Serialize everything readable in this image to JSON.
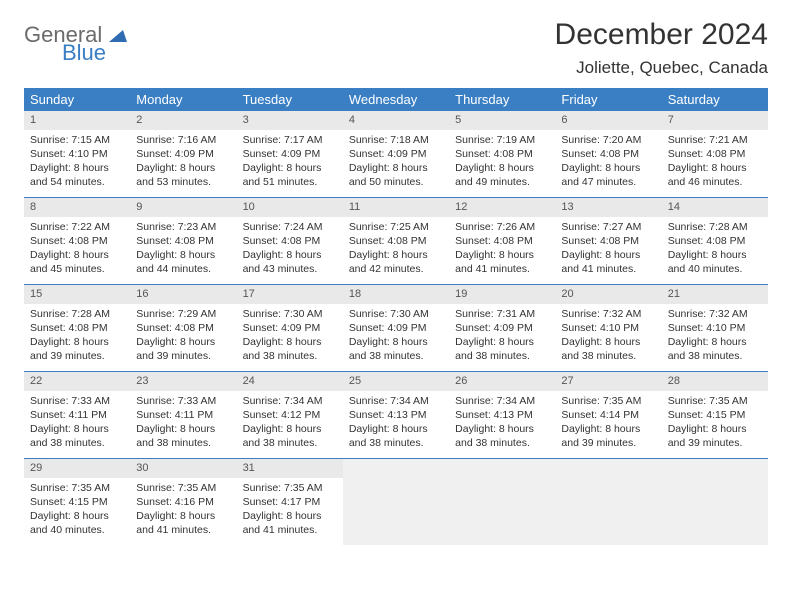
{
  "logo": {
    "word1": "General",
    "word2": "Blue"
  },
  "header": {
    "title": "December 2024",
    "location": "Joliette, Quebec, Canada"
  },
  "colors": {
    "accent": "#3a7fc4",
    "daynum_bg": "#e9e9e9",
    "empty_bg": "#f0f0f0"
  },
  "day_labels": [
    "Sunday",
    "Monday",
    "Tuesday",
    "Wednesday",
    "Thursday",
    "Friday",
    "Saturday"
  ],
  "weeks": [
    [
      {
        "n": "1",
        "sr": "Sunrise: 7:15 AM",
        "ss": "Sunset: 4:10 PM",
        "d1": "Daylight: 8 hours",
        "d2": "and 54 minutes."
      },
      {
        "n": "2",
        "sr": "Sunrise: 7:16 AM",
        "ss": "Sunset: 4:09 PM",
        "d1": "Daylight: 8 hours",
        "d2": "and 53 minutes."
      },
      {
        "n": "3",
        "sr": "Sunrise: 7:17 AM",
        "ss": "Sunset: 4:09 PM",
        "d1": "Daylight: 8 hours",
        "d2": "and 51 minutes."
      },
      {
        "n": "4",
        "sr": "Sunrise: 7:18 AM",
        "ss": "Sunset: 4:09 PM",
        "d1": "Daylight: 8 hours",
        "d2": "and 50 minutes."
      },
      {
        "n": "5",
        "sr": "Sunrise: 7:19 AM",
        "ss": "Sunset: 4:08 PM",
        "d1": "Daylight: 8 hours",
        "d2": "and 49 minutes."
      },
      {
        "n": "6",
        "sr": "Sunrise: 7:20 AM",
        "ss": "Sunset: 4:08 PM",
        "d1": "Daylight: 8 hours",
        "d2": "and 47 minutes."
      },
      {
        "n": "7",
        "sr": "Sunrise: 7:21 AM",
        "ss": "Sunset: 4:08 PM",
        "d1": "Daylight: 8 hours",
        "d2": "and 46 minutes."
      }
    ],
    [
      {
        "n": "8",
        "sr": "Sunrise: 7:22 AM",
        "ss": "Sunset: 4:08 PM",
        "d1": "Daylight: 8 hours",
        "d2": "and 45 minutes."
      },
      {
        "n": "9",
        "sr": "Sunrise: 7:23 AM",
        "ss": "Sunset: 4:08 PM",
        "d1": "Daylight: 8 hours",
        "d2": "and 44 minutes."
      },
      {
        "n": "10",
        "sr": "Sunrise: 7:24 AM",
        "ss": "Sunset: 4:08 PM",
        "d1": "Daylight: 8 hours",
        "d2": "and 43 minutes."
      },
      {
        "n": "11",
        "sr": "Sunrise: 7:25 AM",
        "ss": "Sunset: 4:08 PM",
        "d1": "Daylight: 8 hours",
        "d2": "and 42 minutes."
      },
      {
        "n": "12",
        "sr": "Sunrise: 7:26 AM",
        "ss": "Sunset: 4:08 PM",
        "d1": "Daylight: 8 hours",
        "d2": "and 41 minutes."
      },
      {
        "n": "13",
        "sr": "Sunrise: 7:27 AM",
        "ss": "Sunset: 4:08 PM",
        "d1": "Daylight: 8 hours",
        "d2": "and 41 minutes."
      },
      {
        "n": "14",
        "sr": "Sunrise: 7:28 AM",
        "ss": "Sunset: 4:08 PM",
        "d1": "Daylight: 8 hours",
        "d2": "and 40 minutes."
      }
    ],
    [
      {
        "n": "15",
        "sr": "Sunrise: 7:28 AM",
        "ss": "Sunset: 4:08 PM",
        "d1": "Daylight: 8 hours",
        "d2": "and 39 minutes."
      },
      {
        "n": "16",
        "sr": "Sunrise: 7:29 AM",
        "ss": "Sunset: 4:08 PM",
        "d1": "Daylight: 8 hours",
        "d2": "and 39 minutes."
      },
      {
        "n": "17",
        "sr": "Sunrise: 7:30 AM",
        "ss": "Sunset: 4:09 PM",
        "d1": "Daylight: 8 hours",
        "d2": "and 38 minutes."
      },
      {
        "n": "18",
        "sr": "Sunrise: 7:30 AM",
        "ss": "Sunset: 4:09 PM",
        "d1": "Daylight: 8 hours",
        "d2": "and 38 minutes."
      },
      {
        "n": "19",
        "sr": "Sunrise: 7:31 AM",
        "ss": "Sunset: 4:09 PM",
        "d1": "Daylight: 8 hours",
        "d2": "and 38 minutes."
      },
      {
        "n": "20",
        "sr": "Sunrise: 7:32 AM",
        "ss": "Sunset: 4:10 PM",
        "d1": "Daylight: 8 hours",
        "d2": "and 38 minutes."
      },
      {
        "n": "21",
        "sr": "Sunrise: 7:32 AM",
        "ss": "Sunset: 4:10 PM",
        "d1": "Daylight: 8 hours",
        "d2": "and 38 minutes."
      }
    ],
    [
      {
        "n": "22",
        "sr": "Sunrise: 7:33 AM",
        "ss": "Sunset: 4:11 PM",
        "d1": "Daylight: 8 hours",
        "d2": "and 38 minutes."
      },
      {
        "n": "23",
        "sr": "Sunrise: 7:33 AM",
        "ss": "Sunset: 4:11 PM",
        "d1": "Daylight: 8 hours",
        "d2": "and 38 minutes."
      },
      {
        "n": "24",
        "sr": "Sunrise: 7:34 AM",
        "ss": "Sunset: 4:12 PM",
        "d1": "Daylight: 8 hours",
        "d2": "and 38 minutes."
      },
      {
        "n": "25",
        "sr": "Sunrise: 7:34 AM",
        "ss": "Sunset: 4:13 PM",
        "d1": "Daylight: 8 hours",
        "d2": "and 38 minutes."
      },
      {
        "n": "26",
        "sr": "Sunrise: 7:34 AM",
        "ss": "Sunset: 4:13 PM",
        "d1": "Daylight: 8 hours",
        "d2": "and 38 minutes."
      },
      {
        "n": "27",
        "sr": "Sunrise: 7:35 AM",
        "ss": "Sunset: 4:14 PM",
        "d1": "Daylight: 8 hours",
        "d2": "and 39 minutes."
      },
      {
        "n": "28",
        "sr": "Sunrise: 7:35 AM",
        "ss": "Sunset: 4:15 PM",
        "d1": "Daylight: 8 hours",
        "d2": "and 39 minutes."
      }
    ],
    [
      {
        "n": "29",
        "sr": "Sunrise: 7:35 AM",
        "ss": "Sunset: 4:15 PM",
        "d1": "Daylight: 8 hours",
        "d2": "and 40 minutes."
      },
      {
        "n": "30",
        "sr": "Sunrise: 7:35 AM",
        "ss": "Sunset: 4:16 PM",
        "d1": "Daylight: 8 hours",
        "d2": "and 41 minutes."
      },
      {
        "n": "31",
        "sr": "Sunrise: 7:35 AM",
        "ss": "Sunset: 4:17 PM",
        "d1": "Daylight: 8 hours",
        "d2": "and 41 minutes."
      },
      null,
      null,
      null,
      null
    ]
  ]
}
